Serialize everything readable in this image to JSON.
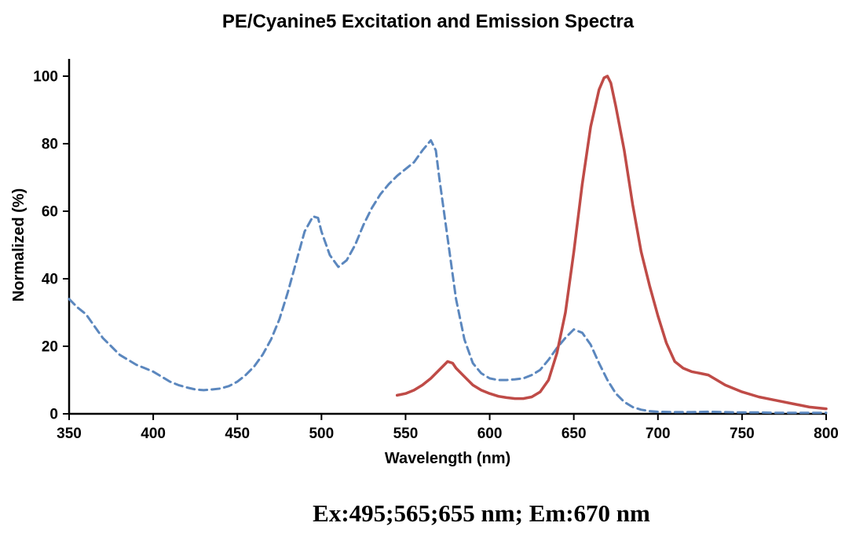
{
  "title": "PE/Cyanine5 Excitation and Emission Spectra",
  "caption": "Ex:495;565;655 nm; Em:670 nm",
  "chart_data": {
    "type": "line",
    "title": "PE/Cyanine5 Excitation and Emission Spectra",
    "xlabel": "Wavelength (nm)",
    "ylabel": "Normalized (%)",
    "xlim": [
      350,
      800
    ],
    "ylim": [
      0,
      100
    ],
    "x_ticks": [
      350,
      400,
      450,
      500,
      550,
      600,
      650,
      700,
      750,
      800
    ],
    "y_ticks": [
      0,
      20,
      40,
      60,
      80,
      100
    ],
    "grid": false,
    "legend_position": "none",
    "annotation": "Ex:495;565;655 nm; Em:670 nm",
    "series": [
      {
        "name": "Excitation",
        "style": "dashed",
        "color": "#5b87be",
        "width": 3,
        "x": [
          350,
          355,
          360,
          365,
          370,
          375,
          380,
          385,
          390,
          395,
          400,
          405,
          410,
          415,
          420,
          425,
          430,
          435,
          440,
          445,
          450,
          455,
          460,
          465,
          470,
          475,
          480,
          485,
          490,
          495,
          498,
          500,
          505,
          510,
          515,
          520,
          525,
          530,
          535,
          540,
          545,
          550,
          555,
          560,
          565,
          568,
          570,
          575,
          580,
          585,
          590,
          595,
          600,
          605,
          610,
          615,
          620,
          625,
          630,
          635,
          640,
          645,
          650,
          655,
          660,
          665,
          670,
          675,
          680,
          685,
          690,
          695,
          700,
          710,
          720,
          730,
          740,
          750,
          760,
          770,
          780,
          790,
          800
        ],
        "y": [
          34,
          31.5,
          29.5,
          26,
          22.5,
          20,
          17.5,
          16,
          14.5,
          13.5,
          12.5,
          11,
          9.5,
          8.5,
          7.8,
          7.2,
          7,
          7.2,
          7.5,
          8.2,
          9.5,
          11.5,
          14,
          17.5,
          22,
          28,
          36,
          45,
          54,
          58.5,
          58,
          54,
          47,
          43.5,
          45.5,
          50,
          56,
          61,
          65,
          68,
          70.5,
          72.5,
          74.5,
          78,
          81,
          78,
          70,
          52,
          34,
          22,
          15,
          12,
          10.5,
          10,
          10,
          10.2,
          10.5,
          11.5,
          13,
          16,
          19.5,
          22.5,
          25,
          24,
          20.5,
          15,
          10,
          6,
          3.5,
          2,
          1.2,
          0.8,
          0.6,
          0.5,
          0.5,
          0.6,
          0.5,
          0.4,
          0.4,
          0.3,
          0.3,
          0.3,
          0.3
        ]
      },
      {
        "name": "Emission",
        "style": "solid",
        "color": "#bf4b47",
        "width": 3.5,
        "x": [
          545,
          550,
          555,
          560,
          565,
          570,
          575,
          578,
          580,
          585,
          590,
          595,
          600,
          605,
          610,
          615,
          620,
          625,
          630,
          635,
          640,
          645,
          650,
          655,
          660,
          665,
          668,
          670,
          672,
          675,
          680,
          685,
          690,
          695,
          700,
          705,
          710,
          715,
          720,
          725,
          730,
          735,
          740,
          745,
          750,
          760,
          770,
          780,
          790,
          800
        ],
        "y": [
          5.5,
          6,
          7,
          8.5,
          10.5,
          13,
          15.5,
          15,
          13.5,
          11,
          8.5,
          7,
          6,
          5.2,
          4.8,
          4.5,
          4.5,
          5,
          6.5,
          10,
          18,
          30,
          48,
          68,
          85,
          96,
          99.5,
          100,
          98,
          91,
          78,
          62,
          48,
          38,
          29,
          21,
          15.5,
          13.5,
          12.5,
          12,
          11.5,
          10,
          8.5,
          7.5,
          6.5,
          5,
          4,
          3,
          2,
          1.5
        ]
      }
    ]
  }
}
